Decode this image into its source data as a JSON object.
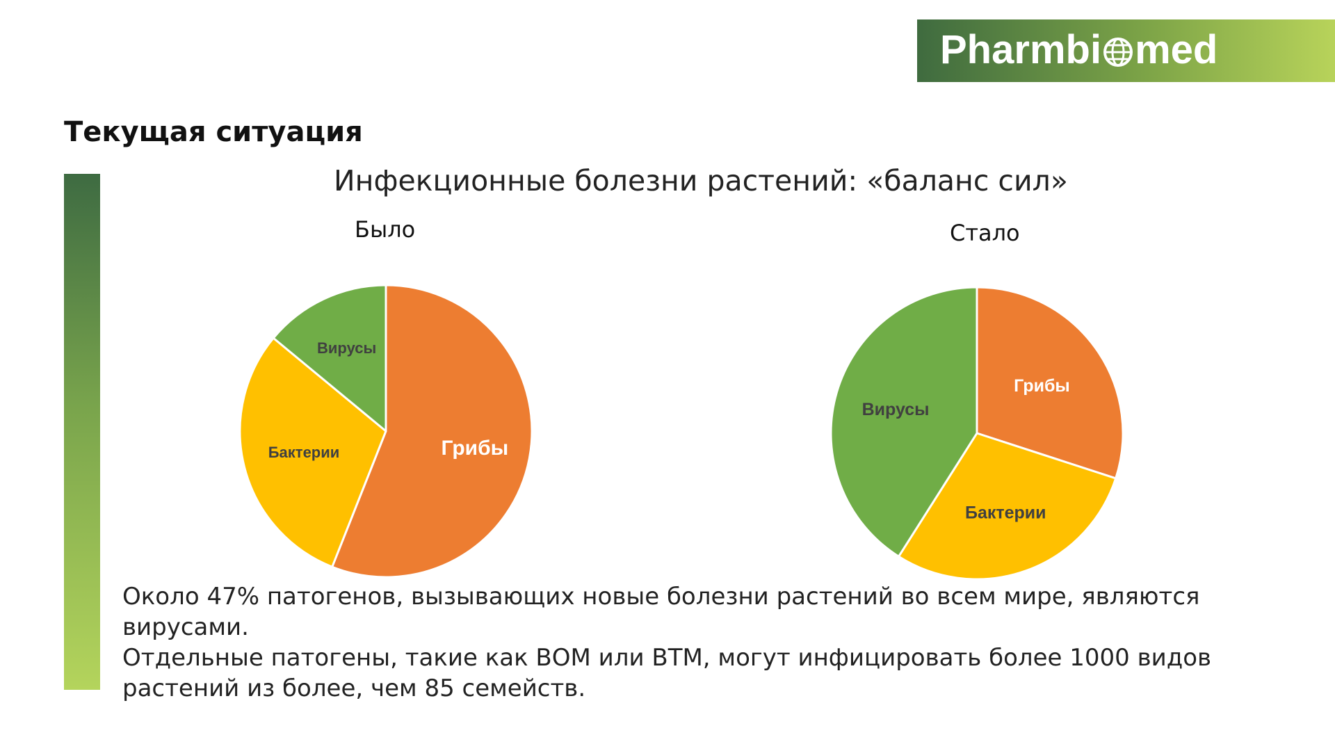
{
  "logo": {
    "text_before": "Pharmbi",
    "text_after": "med",
    "icon": "globe-icon"
  },
  "header": {
    "title": "Текущая ситуация"
  },
  "colors": {
    "fungi": "#ED7D31",
    "bacteria": "#FFC000",
    "viruses": "#70AD47",
    "label_light": "#FFFFFF",
    "label_dark": "#404040"
  },
  "chart_data": {
    "title": "Инфекционные болезни растений: «баланс сил»",
    "charts": [
      {
        "type": "pie",
        "title": "Было",
        "slices": [
          {
            "label": "Грибы",
            "value": 56,
            "color": "#ED7D31",
            "label_color": "#FFFFFF"
          },
          {
            "label": "Бактерии",
            "value": 30,
            "color": "#FFC000",
            "label_color": "#404040"
          },
          {
            "label": "Вирусы",
            "value": 14,
            "color": "#70AD47",
            "label_color": "#404040"
          }
        ]
      },
      {
        "type": "pie",
        "title": "Стало",
        "slices": [
          {
            "label": "Грибы",
            "value": 30,
            "color": "#ED7D31",
            "label_color": "#FFFFFF"
          },
          {
            "label": "Бактерии",
            "value": 29,
            "color": "#FFC000",
            "label_color": "#404040"
          },
          {
            "label": "Вирусы",
            "value": 41,
            "color": "#70AD47",
            "label_color": "#404040"
          }
        ]
      }
    ]
  },
  "body": {
    "paragraphs": [
      "Около 47% патогенов, вызывающих новые болезни растений во всем мире, являются вирусами.",
      "Отдельные патогены, такие как ВОМ или ВТМ, могут инфицировать более 1000 видов растений из более, чем 85 семейств."
    ]
  }
}
